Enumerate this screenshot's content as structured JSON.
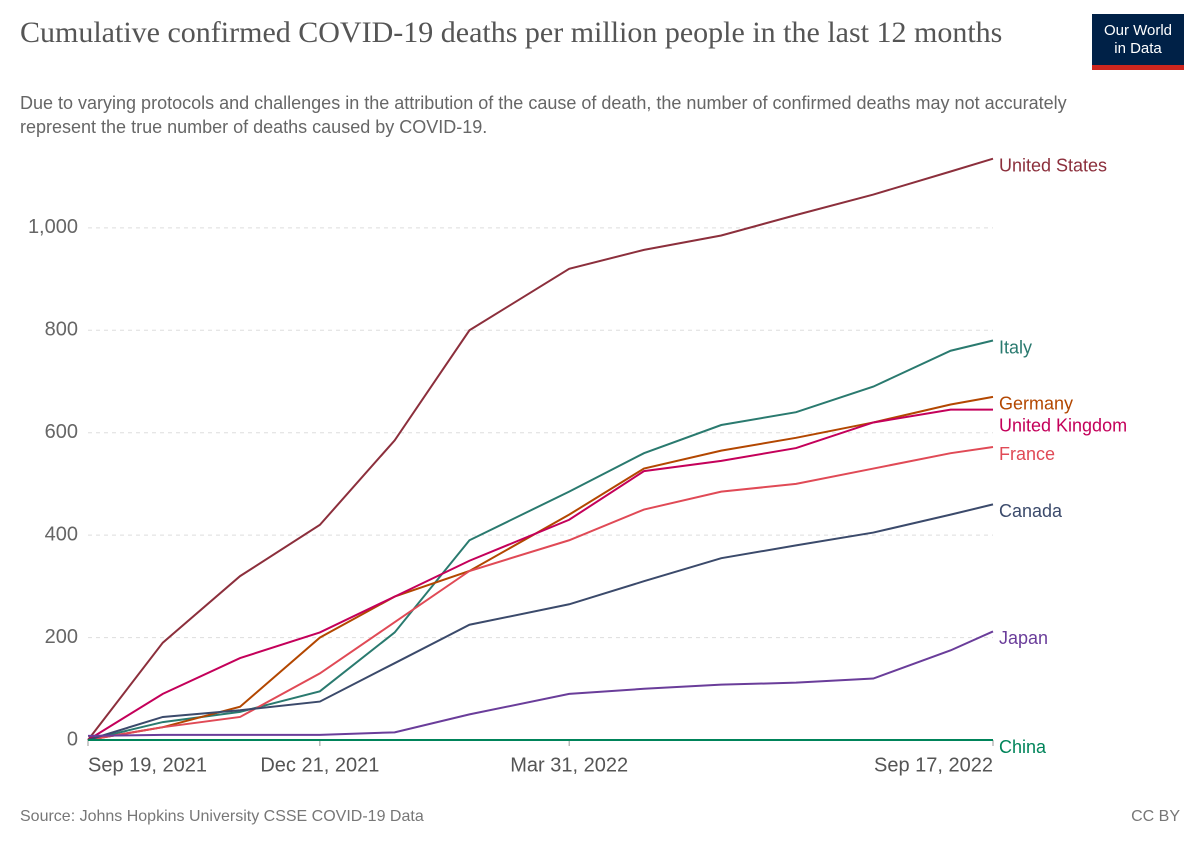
{
  "chart_data": {
    "type": "line",
    "title": "Cumulative confirmed COVID-19 deaths per million people in the last 12 months",
    "subtitle": "Due to varying protocols and challenges in the attribution of the cause of death, the number of confirmed deaths may not accurately represent the true number of deaths caused by COVID-19.",
    "source": "Source: Johns Hopkins University CSSE COVID-19 Data",
    "license": "CC BY",
    "logo": [
      "Our World",
      "in Data"
    ],
    "x": [
      "2021-09-19",
      "2021-10-19",
      "2021-11-19",
      "2021-12-21",
      "2022-01-20",
      "2022-02-19",
      "2022-03-31",
      "2022-04-30",
      "2022-05-31",
      "2022-06-30",
      "2022-07-31",
      "2022-08-31",
      "2022-09-17"
    ],
    "xlim": [
      "2021-09-19",
      "2022-09-17"
    ],
    "xticks": [
      {
        "value": "2021-09-19",
        "label": "Sep 19, 2021"
      },
      {
        "value": "2021-12-21",
        "label": "Dec 21, 2021"
      },
      {
        "value": "2022-03-31",
        "label": "Mar 31, 2022"
      },
      {
        "value": "2022-09-17",
        "label": "Sep 17, 2022"
      }
    ],
    "ylim": [
      0,
      1150
    ],
    "yticks": [
      0,
      200,
      400,
      600,
      800,
      {
        "value": 1000,
        "label": "1,000"
      }
    ],
    "grid": true,
    "series": [
      {
        "name": "United States",
        "color": "#8c2f3c",
        "values": [
          0,
          190,
          320,
          420,
          585,
          800,
          920,
          957,
          985,
          1025,
          1065,
          1110,
          1135
        ]
      },
      {
        "name": "Italy",
        "color": "#2a7a6f",
        "values": [
          0,
          35,
          55,
          95,
          210,
          390,
          485,
          560,
          615,
          640,
          690,
          760,
          780
        ]
      },
      {
        "name": "Germany",
        "color": "#b34700",
        "values": [
          0,
          25,
          65,
          200,
          280,
          330,
          440,
          530,
          565,
          590,
          620,
          655,
          670
        ]
      },
      {
        "name": "United Kingdom",
        "color": "#c4005a",
        "values": [
          0,
          90,
          160,
          210,
          280,
          350,
          430,
          525,
          545,
          570,
          620,
          645,
          645
        ]
      },
      {
        "name": "France",
        "color": "#e04a56",
        "values": [
          0,
          25,
          45,
          130,
          230,
          330,
          390,
          450,
          485,
          500,
          530,
          560,
          572
        ]
      },
      {
        "name": "Canada",
        "color": "#3b4a6b",
        "values": [
          0,
          45,
          58,
          75,
          150,
          225,
          265,
          310,
          355,
          380,
          405,
          440,
          460
        ]
      },
      {
        "name": "Japan",
        "color": "#6a3d9a",
        "values": [
          8,
          10,
          10,
          10,
          15,
          50,
          90,
          100,
          108,
          112,
          120,
          175,
          212
        ]
      },
      {
        "name": "China",
        "color": "#00845a",
        "values": [
          0,
          0,
          0,
          0,
          0,
          0,
          0,
          0,
          0,
          0,
          0,
          0,
          0
        ]
      }
    ]
  }
}
